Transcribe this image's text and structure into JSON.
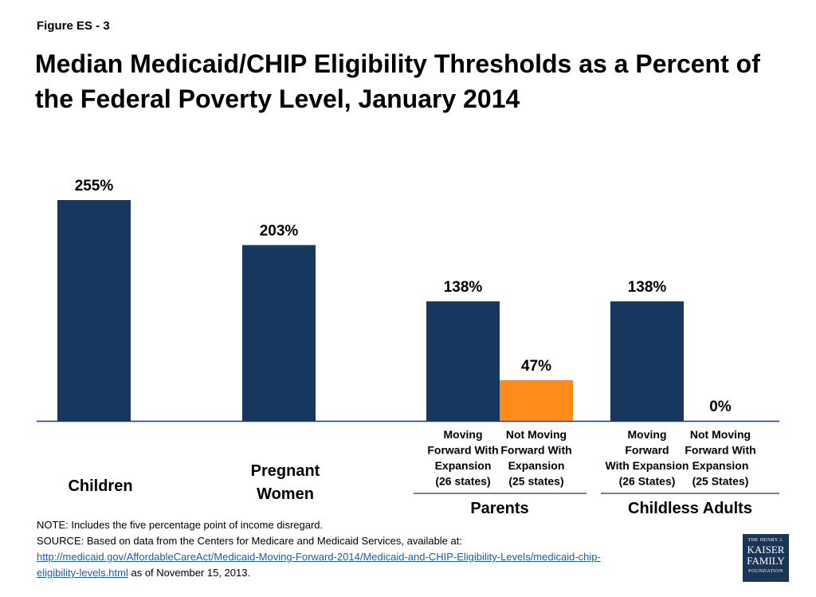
{
  "figure_label": "Figure ES - 3",
  "title": "Median Medicaid/CHIP Eligibility Thresholds as a Percent of the Federal Poverty Level, January 2014",
  "chart_data": {
    "type": "bar",
    "ylim": [
      0,
      255
    ],
    "grid": false,
    "colors": {
      "default": "#17375e",
      "highlight": "#ff8c19",
      "axis": "#17375e"
    },
    "bars": [
      {
        "id": "children",
        "value": 255,
        "label": "255%",
        "color": "#17375e"
      },
      {
        "id": "pregnant-women",
        "value": 203,
        "label": "203%",
        "color": "#17375e"
      },
      {
        "id": "parents-moving-forward",
        "value": 138,
        "label": "138%",
        "color": "#17375e",
        "sublabel": [
          "Moving",
          "Forward With",
          "Expansion",
          "(26 states)"
        ]
      },
      {
        "id": "parents-not-moving-forward",
        "value": 47,
        "label": "47%",
        "color": "#ff8c19",
        "sublabel": [
          "Not Moving",
          "Forward  With",
          "Expansion",
          "(25 states)"
        ]
      },
      {
        "id": "childless-moving-forward",
        "value": 138,
        "label": "138%",
        "color": "#17375e",
        "sublabel": [
          "Moving",
          "Forward",
          "With Expansion",
          "(26 States)"
        ]
      },
      {
        "id": "childless-not-moving-forward",
        "value": 0,
        "label": "0%",
        "color": "#17375e",
        "sublabel": [
          "Not Moving",
          "Forward With",
          "Expansion",
          "(25 States)"
        ]
      }
    ],
    "categories": [
      {
        "id": "children",
        "lines": [
          "Children"
        ]
      },
      {
        "id": "pregnant-women",
        "lines": [
          "Pregnant",
          "Women"
        ]
      },
      {
        "id": "parents",
        "lines": [
          "Parents"
        ]
      },
      {
        "id": "childless-adults",
        "lines": [
          "Childless Adults"
        ]
      }
    ]
  },
  "footer": {
    "note": "NOTE: Includes the five percentage point of income disregard.",
    "source": "SOURCE: Based on data from the Centers for Medicare and Medicaid Services, available at:",
    "link_line1": "http://medicaid.gov/AffordableCareAct/Medicaid-Moving-Forward-2014/Medicaid-and-CHIP-Eligibility-Levels/medicaid-chip-",
    "link_line2": "eligibility-levels.html",
    "date_suffix": " as of November 15, 2013."
  },
  "logo": {
    "line1": "THE HENRY J.",
    "line2": "KAISER",
    "line3": "FAMILY",
    "line4": "FOUNDATION"
  }
}
